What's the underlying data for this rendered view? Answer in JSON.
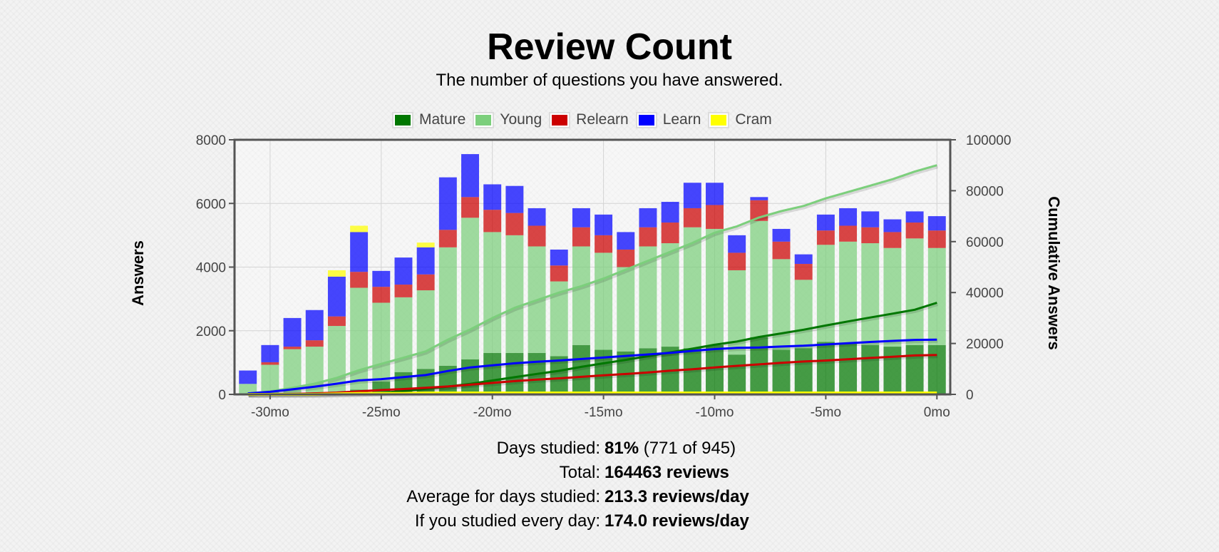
{
  "header": {
    "title": "Review Count",
    "subtitle": "The number of questions you have answered."
  },
  "legend": [
    {
      "label": "Mature",
      "color": "#007700"
    },
    {
      "label": "Young",
      "color": "#7ccf7c"
    },
    {
      "label": "Relearn",
      "color": "#cc0000"
    },
    {
      "label": "Learn",
      "color": "#0000ff"
    },
    {
      "label": "Cram",
      "color": "#ffff00"
    }
  ],
  "axes": {
    "left_label": "Answers",
    "right_label": "Cumulative Answers"
  },
  "stats": {
    "days_studied_label": "Days studied:",
    "days_studied_pct": "81%",
    "days_studied_detail": "(771 of 945)",
    "total_label": "Total:",
    "total_value": "164463 reviews",
    "avg_label": "Average for days studied:",
    "avg_value": "213.3 reviews/day",
    "every_day_label": "If you studied every day:",
    "every_day_value": "174.0 reviews/day"
  },
  "chart_data": {
    "type": "bar",
    "stacked": true,
    "x": [
      -31,
      -30,
      -29,
      -28,
      -27,
      -26,
      -25,
      -24,
      -23,
      -22,
      -21,
      -20,
      -19,
      -18,
      -17,
      -16,
      -15,
      -14,
      -13,
      -12,
      -11,
      -10,
      -9,
      -8,
      -7,
      -6,
      -5,
      -4,
      -3,
      -2,
      -1,
      0
    ],
    "x_ticks": [
      "-30mo",
      "-25mo",
      "-20mo",
      "-15mo",
      "-10mo",
      "-5mo",
      "0mo"
    ],
    "x_tick_values": [
      -30,
      -25,
      -20,
      -15,
      -10,
      -5,
      0
    ],
    "xlim": [
      -31.6,
      0.6
    ],
    "ylim_left": [
      0,
      8000
    ],
    "y_ticks_left": [
      "0",
      "2000",
      "4000",
      "6000",
      "8000"
    ],
    "ylim_right": [
      0,
      100000
    ],
    "y_ticks_right": [
      "0",
      "20000",
      "40000",
      "60000",
      "80000",
      "100000"
    ],
    "grid": true,
    "legend_position": "top",
    "series": [
      {
        "name": "Mature",
        "color": "#007700",
        "values": [
          0,
          0,
          0,
          0,
          50,
          150,
          400,
          700,
          800,
          900,
          1100,
          1300,
          1300,
          1300,
          1200,
          1550,
          1400,
          1350,
          1450,
          1500,
          1450,
          1550,
          1250,
          1800,
          1400,
          1450,
          1650,
          1600,
          1550,
          1500,
          1550,
          1550
        ]
      },
      {
        "name": "Young",
        "color": "#7ccf7c",
        "values": [
          330,
          930,
          1420,
          1500,
          2100,
          3200,
          2480,
          2350,
          2470,
          3720,
          4450,
          3800,
          3700,
          3350,
          2350,
          3100,
          3050,
          2650,
          3200,
          3250,
          3800,
          3650,
          2650,
          3650,
          2850,
          2150,
          3050,
          3200,
          3200,
          3100,
          3350,
          3050
        ]
      },
      {
        "name": "Relearn",
        "color": "#cc0000",
        "values": [
          0,
          80,
          80,
          200,
          300,
          500,
          500,
          400,
          500,
          550,
          650,
          700,
          700,
          650,
          500,
          600,
          550,
          550,
          600,
          650,
          600,
          750,
          550,
          650,
          550,
          500,
          450,
          500,
          500,
          500,
          500,
          550
        ]
      },
      {
        "name": "Learn",
        "color": "#0000ff",
        "values": [
          420,
          540,
          900,
          950,
          1250,
          1250,
          500,
          850,
          850,
          1650,
          1350,
          800,
          850,
          550,
          500,
          600,
          650,
          550,
          600,
          650,
          800,
          700,
          550,
          100,
          400,
          300,
          500,
          550,
          500,
          400,
          350,
          450
        ]
      },
      {
        "name": "Cram",
        "color": "#ffff00",
        "values": [
          0,
          0,
          0,
          0,
          200,
          200,
          0,
          0,
          150,
          0,
          0,
          0,
          0,
          0,
          0,
          0,
          0,
          0,
          0,
          0,
          0,
          0,
          0,
          0,
          0,
          0,
          0,
          0,
          0,
          0,
          0,
          0
        ]
      }
    ],
    "cumulative": [
      {
        "name": "Young",
        "color": "#7ccf7c",
        "values": [
          300,
          1200,
          2600,
          4200,
          6500,
          9500,
          12000,
          14400,
          16900,
          21500,
          25500,
          30000,
          34000,
          37000,
          40000,
          42500,
          45500,
          49000,
          52500,
          56000,
          59500,
          63500,
          66000,
          69500,
          72000,
          74000,
          77000,
          79500,
          82000,
          84500,
          87500,
          90000
        ]
      },
      {
        "name": "Mature",
        "color": "#007700",
        "values": [
          0,
          0,
          0,
          0,
          100,
          250,
          650,
          1350,
          2150,
          3050,
          4150,
          5450,
          6750,
          8050,
          9250,
          10800,
          12200,
          13550,
          15000,
          16500,
          17950,
          19500,
          20750,
          22550,
          23950,
          25400,
          27050,
          28650,
          30200,
          31700,
          33250,
          36000
        ]
      },
      {
        "name": "Learn",
        "color": "#0000ff",
        "values": [
          400,
          1000,
          2000,
          3000,
          4200,
          5500,
          6000,
          6800,
          7600,
          9200,
          10600,
          11400,
          12200,
          12800,
          13300,
          13900,
          14500,
          15100,
          15700,
          16300,
          17100,
          17800,
          18300,
          18400,
          18800,
          19100,
          19600,
          20100,
          20600,
          21000,
          21400,
          21500
        ]
      },
      {
        "name": "Relearn",
        "color": "#cc0000",
        "values": [
          0,
          100,
          200,
          400,
          700,
          1200,
          1700,
          2100,
          2600,
          3100,
          3800,
          4500,
          5200,
          5800,
          6300,
          6900,
          7500,
          8000,
          8600,
          9300,
          9900,
          10600,
          11200,
          11800,
          12400,
          12900,
          13300,
          13800,
          14300,
          14800,
          15300,
          15500
        ]
      },
      {
        "name": "Cram",
        "color": "#ffff00",
        "values": [
          0,
          0,
          0,
          0,
          200,
          400,
          400,
          400,
          550,
          550,
          550,
          550,
          550,
          550,
          550,
          550,
          550,
          550,
          550,
          550,
          550,
          550,
          550,
          550,
          550,
          550,
          550,
          550,
          550,
          550,
          550,
          550
        ]
      }
    ]
  }
}
